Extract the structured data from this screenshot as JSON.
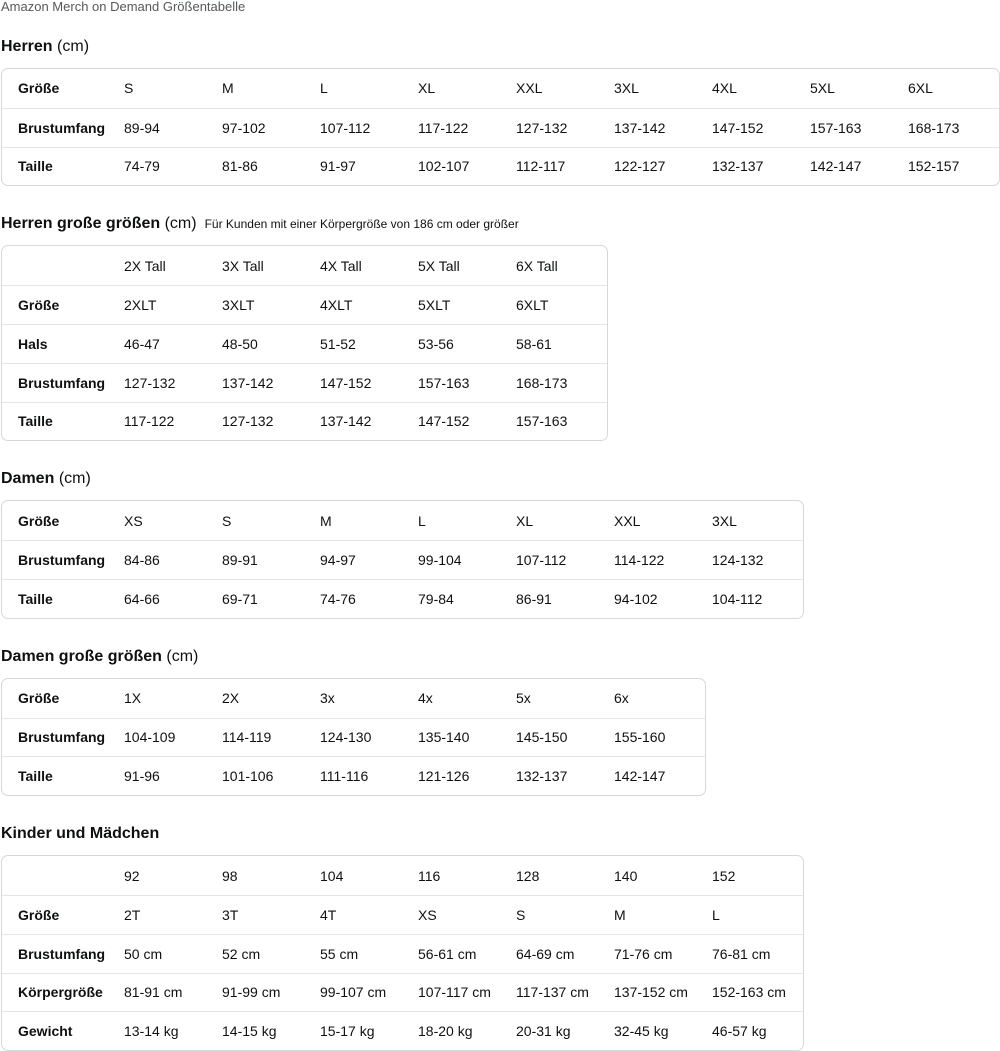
{
  "title": "Amazon Merch on Demand Größentabelle",
  "sections": [
    {
      "heading": "Herren",
      "unit": "(cm)",
      "table": {
        "rows": [
          [
            "Größe",
            "S",
            "M",
            "L",
            "XL",
            "XXL",
            "3XL",
            "4XL",
            "5XL",
            "6XL"
          ],
          [
            "Brustumfang",
            "89-94",
            "97-102",
            "107-112",
            "117-122",
            "127-132",
            "137-142",
            "147-152",
            "157-163",
            "168-173"
          ],
          [
            "Taille",
            "74-79",
            "81-86",
            "91-97",
            "102-107",
            "112-117",
            "122-127",
            "132-137",
            "142-147",
            "152-157"
          ]
        ]
      }
    },
    {
      "heading": "Herren große größen",
      "unit": "(cm)",
      "note": "Für Kunden mit einer Körpergröße von 186 cm oder größer",
      "table": {
        "columns": [
          "2X Tall",
          "3X Tall",
          "4X Tall",
          "5X Tall",
          "6X Tall"
        ],
        "rows": [
          [
            "Größe",
            "2XLT",
            "3XLT",
            "4XLT",
            "5XLT",
            "6XLT"
          ],
          [
            "Hals",
            "46-47",
            "48-50",
            "51-52",
            "53-56",
            "58-61"
          ],
          [
            "Brustumfang",
            "127-132",
            "137-142",
            "147-152",
            "157-163",
            "168-173"
          ],
          [
            "Taille",
            "117-122",
            "127-132",
            "137-142",
            "147-152",
            "157-163"
          ]
        ]
      }
    },
    {
      "heading": "Damen",
      "unit": "(cm)",
      "table": {
        "rows": [
          [
            "Größe",
            "XS",
            "S",
            "M",
            "L",
            "XL",
            "XXL",
            "3XL"
          ],
          [
            "Brustumfang",
            "84-86",
            "89-91",
            "94-97",
            "99-104",
            "107-112",
            "114-122",
            "124-132"
          ],
          [
            "Taille",
            "64-66",
            "69-71",
            "74-76",
            "79-84",
            "86-91",
            "94-102",
            "104-112"
          ]
        ]
      }
    },
    {
      "heading": "Damen große größen",
      "unit": "(cm)",
      "table": {
        "rows": [
          [
            "Größe",
            "1X",
            "2X",
            "3x",
            "4x",
            "5x",
            "6x"
          ],
          [
            "Brustumfang",
            "104-109",
            "114-119",
            "124-130",
            "135-140",
            "145-150",
            "155-160"
          ],
          [
            "Taille",
            "91-96",
            "101-106",
            "111-116",
            "121-126",
            "132-137",
            "142-147"
          ]
        ]
      }
    },
    {
      "heading": "Kinder und Mädchen",
      "table": {
        "columns": [
          "92",
          "98",
          "104",
          "116",
          "128",
          "140",
          "152"
        ],
        "rows": [
          [
            "Größe",
            "2T",
            "3T",
            "4T",
            "XS",
            "S",
            "M",
            "L"
          ],
          [
            "Brustumfang",
            "50 cm",
            "52 cm",
            "55 cm",
            "56-61 cm",
            "64-69 cm",
            "71-76 cm",
            "76-81 cm"
          ],
          [
            "Körpergröße",
            "81-91 cm",
            "91-99 cm",
            "99-107 cm",
            "107-117 cm",
            "117-137 cm",
            "137-152 cm",
            "152-163 cm"
          ],
          [
            "Gewicht",
            "13-14 kg",
            "14-15 kg",
            "15-17 kg",
            "18-20 kg",
            "20-31 kg",
            "32-45 kg",
            "46-57 kg"
          ]
        ]
      }
    }
  ]
}
